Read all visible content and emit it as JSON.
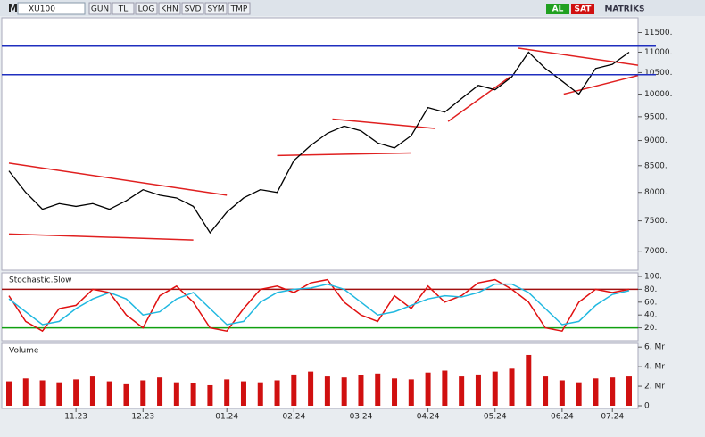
{
  "toolbar": {
    "logo": "M",
    "symbol": "XU100",
    "buttons": [
      "GUN",
      "TL",
      "LOG",
      "KHN",
      "SVD",
      "SYM",
      "TMP"
    ],
    "buy": "AL",
    "sell": "SAT",
    "brand": "MATRİKS"
  },
  "chart_data": [
    {
      "type": "line",
      "log": true,
      "color": "#000000",
      "categories": [
        null,
        null,
        null,
        null,
        "11.23",
        null,
        null,
        null,
        "12.23",
        null,
        null,
        null,
        null,
        "01.24",
        null,
        null,
        null,
        "02.24",
        null,
        null,
        null,
        "03.24",
        null,
        null,
        null,
        "04.24",
        null,
        null,
        null,
        "05.24",
        null,
        null,
        null,
        "06.24",
        null,
        null,
        "07.24",
        null
      ],
      "values": [
        8400,
        8000,
        7700,
        7800,
        7750,
        7800,
        7700,
        7850,
        8050,
        7950,
        7900,
        7750,
        7300,
        7650,
        7900,
        8050,
        8000,
        8600,
        8900,
        9150,
        9300,
        9200,
        8950,
        8850,
        9100,
        9700,
        9600,
        9900,
        10200,
        10100,
        10400,
        11000,
        10600,
        10300,
        10000,
        10600,
        10700,
        11000
      ],
      "ylim": [
        6800,
        11700
      ],
      "yticks": [
        {
          "value": 7000,
          "label": "7000."
        },
        {
          "value": 7500,
          "label": "7500."
        },
        {
          "value": 8000,
          "label": "8000."
        },
        {
          "value": 8500,
          "label": "8500."
        },
        {
          "value": 9000,
          "label": "9000."
        },
        {
          "value": 9500,
          "label": "9500."
        },
        {
          "value": 10000,
          "label": "10000."
        },
        {
          "value": 10500,
          "label": "10500."
        },
        {
          "value": 11000,
          "label": "11000."
        },
        {
          "value": 11500,
          "label": "11500."
        }
      ],
      "hlines": [
        11150,
        10450
      ],
      "hline_color": "#1f2fbf",
      "trend_color": "#e02020",
      "trendlines": [
        [
          0,
          8550,
          13,
          7950
        ],
        [
          0,
          7280,
          11,
          7180
        ],
        [
          16,
          8700,
          24,
          8750
        ],
        [
          19.3,
          9450,
          25.4,
          9250
        ],
        [
          26.2,
          9400,
          29.9,
          10400
        ],
        [
          30.4,
          11100,
          38,
          10650
        ],
        [
          33.1,
          10000,
          38,
          10480
        ]
      ]
    },
    {
      "type": "line",
      "title": "Stochastic.Slow",
      "ylim": [
        0,
        100
      ],
      "yticks": [
        {
          "value": 20,
          "label": "20."
        },
        {
          "value": 40,
          "label": "40."
        },
        {
          "value": 60,
          "label": "60."
        },
        {
          "value": 80,
          "label": "80."
        },
        {
          "value": 100,
          "label": "100."
        }
      ],
      "levels": [
        {
          "value": 80,
          "color": "#a01010"
        },
        {
          "value": 20,
          "color": "#10a010"
        }
      ],
      "series": [
        {
          "color": "#e01010",
          "values": [
            70,
            30,
            15,
            50,
            55,
            80,
            75,
            40,
            20,
            70,
            85,
            60,
            20,
            15,
            50,
            80,
            85,
            75,
            90,
            95,
            60,
            40,
            30,
            70,
            50,
            85,
            60,
            70,
            90,
            95,
            80,
            60,
            20,
            15,
            60,
            80,
            75,
            80
          ]
        },
        {
          "color": "#20b8e0",
          "values": [
            65,
            45,
            25,
            30,
            50,
            65,
            75,
            65,
            40,
            45,
            65,
            75,
            50,
            25,
            30,
            60,
            75,
            80,
            82,
            88,
            80,
            60,
            40,
            45,
            55,
            65,
            70,
            68,
            75,
            88,
            88,
            75,
            50,
            25,
            30,
            55,
            72,
            78
          ]
        }
      ]
    },
    {
      "type": "bar",
      "title": "Volume",
      "color": "#d01010",
      "ylim": [
        0,
        6.2
      ],
      "yticks": [
        0,
        {
          "value": 2,
          "label": "2. Mr"
        },
        {
          "value": 4,
          "label": "4. Mr"
        },
        {
          "value": 6,
          "label": "6. Mr"
        }
      ],
      "values": [
        2.5,
        2.8,
        2.6,
        2.4,
        2.7,
        3.0,
        2.5,
        2.2,
        2.6,
        2.9,
        2.4,
        2.3,
        2.1,
        2.7,
        2.5,
        2.4,
        2.6,
        3.2,
        3.5,
        3.0,
        2.9,
        3.1,
        3.3,
        2.8,
        2.7,
        3.4,
        3.6,
        3.0,
        3.2,
        3.5,
        3.8,
        5.2,
        3.0,
        2.6,
        2.4,
        2.8,
        2.9,
        3.0
      ]
    }
  ]
}
